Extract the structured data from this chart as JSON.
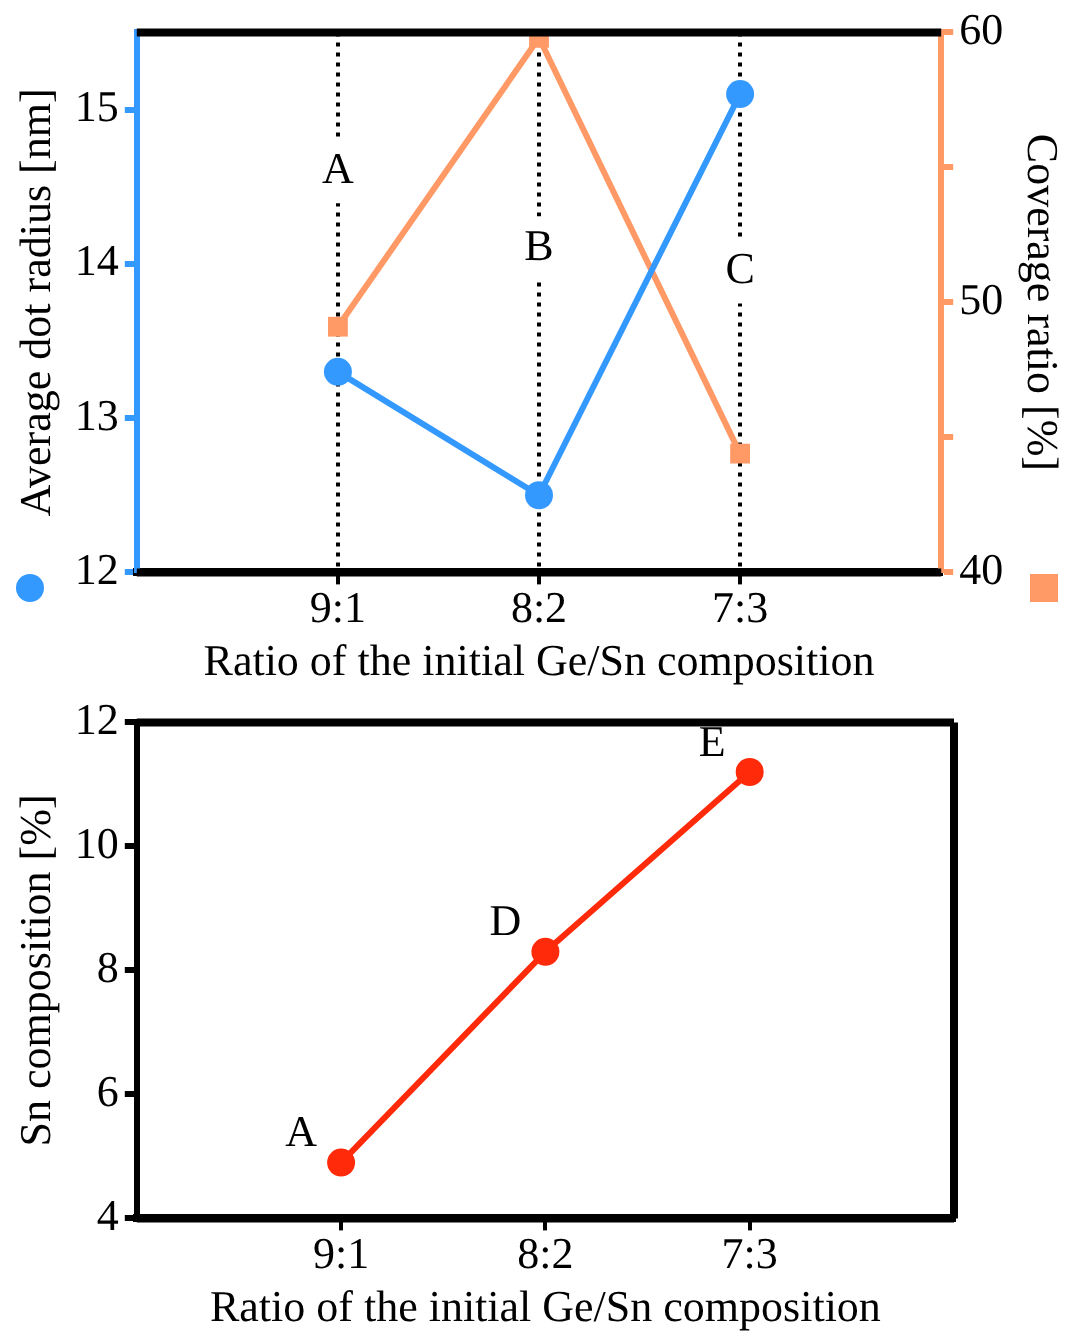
{
  "chart_data": [
    {
      "type": "line",
      "categories": [
        null,
        "9:1",
        "8:2",
        "7:3",
        null
      ],
      "xlabel": "Ratio of the initial Ge/Sn composition",
      "ylabel": "Average dot radius [nm]",
      "y2label": "Coverage ratio [%]",
      "series": [
        {
          "color": "#3399ff",
          "marker": "circle",
          "values": [
            null,
            13.3,
            12.5,
            15.1,
            null
          ]
        },
        {
          "color": "#ff9966",
          "marker": "square",
          "axis": "y2",
          "values": [
            null,
            49.1,
            59.8,
            44.4,
            null
          ]
        }
      ],
      "ylim": [
        12,
        15.5
      ],
      "yticks": [
        12,
        13,
        14,
        15
      ],
      "y2lim": [
        40,
        60
      ],
      "y2ticks": [
        40,
        {
          "value": 45,
          "label": null
        },
        50,
        {
          "value": 55,
          "label": null
        },
        60
      ],
      "grid": "x",
      "line_style": "solid",
      "legend": false,
      "annotations": [
        {
          "text": "A",
          "x": "9:1",
          "y": 14.6
        },
        {
          "text": "B",
          "x": "8:2",
          "y": 14.1
        },
        {
          "text": "C",
          "x": "7:3",
          "y": 13.95
        }
      ]
    },
    {
      "type": "line",
      "categories": [
        null,
        "9:1",
        "8:2",
        "7:3",
        null
      ],
      "xlabel": "Ratio of the initial Ge/Sn composition",
      "ylabel": "Sn composition [%]",
      "series": [
        {
          "color": "#ff2a0a",
          "marker": "circle",
          "values": [
            null,
            4.9,
            8.3,
            11.2,
            null
          ]
        }
      ],
      "ylim": [
        4,
        12
      ],
      "yticks": [
        4,
        6,
        8,
        10,
        12
      ],
      "grid": false,
      "line_style": "solid",
      "legend": false,
      "annotations": [
        {
          "text": "A",
          "x": "9:1",
          "y": 4.9
        },
        {
          "text": "D",
          "x": "8:2",
          "y": 8.3
        },
        {
          "text": "E",
          "x": "7:3",
          "y": 11.2
        }
      ]
    }
  ]
}
